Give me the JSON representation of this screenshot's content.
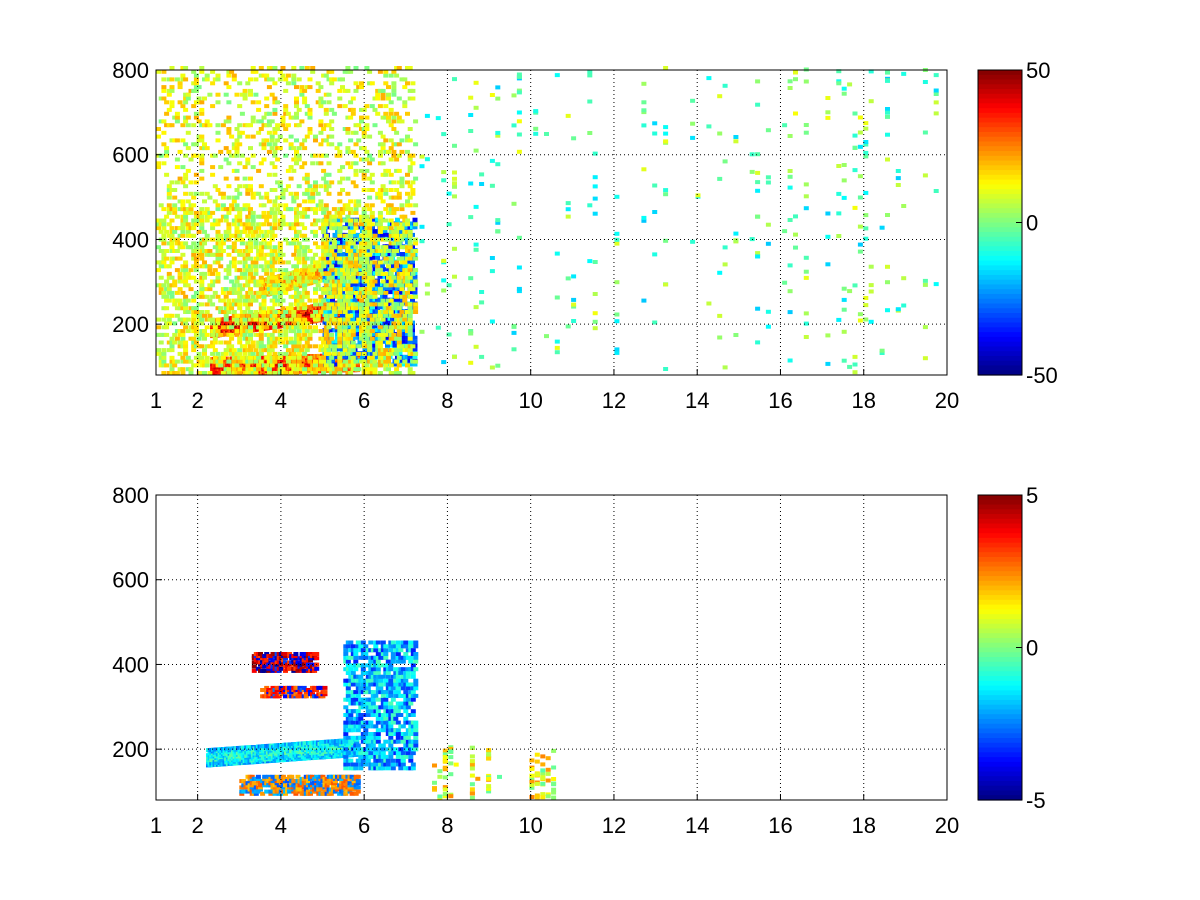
{
  "chart_data": [
    {
      "type": "heatmap",
      "title": "",
      "xlabel": "",
      "ylabel": "",
      "xlim": [
        1,
        20
      ],
      "ylim": [
        80,
        800
      ],
      "x_ticks": [
        1,
        2,
        4,
        6,
        8,
        10,
        12,
        14,
        16,
        18,
        20
      ],
      "y_ticks": [
        200,
        400,
        600,
        800
      ],
      "grid": true,
      "colormap": "jet",
      "colorbar": {
        "min": -50,
        "max": 50,
        "ticks": [
          50,
          0,
          -50
        ]
      },
      "features": [
        {
          "kind": "band",
          "x": [
            2.3,
            5.8
          ],
          "y": [
            185,
            235
          ],
          "value": 40
        },
        {
          "kind": "band",
          "x": [
            3.5,
            5.8
          ],
          "y": [
            280,
            340
          ],
          "value": 20
        },
        {
          "kind": "band",
          "x": [
            2.3,
            5.8
          ],
          "y": [
            95,
            105
          ],
          "value": 35
        },
        {
          "kind": "blob",
          "x": [
            5.0,
            7.2
          ],
          "y": [
            100,
            450
          ],
          "value": -25
        },
        {
          "kind": "noise",
          "x": [
            1.0,
            7.2
          ],
          "y": [
            80,
            800
          ],
          "value": 10
        },
        {
          "kind": "sparse",
          "x": [
            7.2,
            20
          ],
          "y": [
            80,
            800
          ],
          "value": -3
        }
      ]
    },
    {
      "type": "heatmap",
      "title": "",
      "xlabel": "",
      "ylabel": "",
      "xlim": [
        1,
        20
      ],
      "ylim": [
        80,
        800
      ],
      "x_ticks": [
        1,
        2,
        4,
        6,
        8,
        10,
        12,
        14,
        16,
        18,
        20
      ],
      "y_ticks": [
        200,
        400,
        600,
        800
      ],
      "grid": true,
      "colormap": "jet",
      "colorbar": {
        "min": -5,
        "max": 5,
        "ticks": [
          5,
          0,
          -5
        ]
      },
      "features": [
        {
          "kind": "band",
          "x": [
            2.2,
            5.8
          ],
          "y": [
            175,
            200
          ],
          "value": -1
        },
        {
          "kind": "cluster",
          "x": [
            3.3,
            4.8
          ],
          "y": [
            380,
            420
          ],
          "value": 5
        },
        {
          "kind": "cluster",
          "x": [
            3.5,
            5.0
          ],
          "y": [
            320,
            340
          ],
          "value": 4
        },
        {
          "kind": "cluster",
          "x": [
            3.0,
            5.8
          ],
          "y": [
            90,
            130
          ],
          "value": 3
        },
        {
          "kind": "blob",
          "x": [
            5.5,
            7.2
          ],
          "y": [
            150,
            450
          ],
          "value": -2
        },
        {
          "kind": "sparse",
          "x": [
            7.5,
            10.5
          ],
          "y": [
            80,
            200
          ],
          "value": 1
        }
      ]
    }
  ]
}
